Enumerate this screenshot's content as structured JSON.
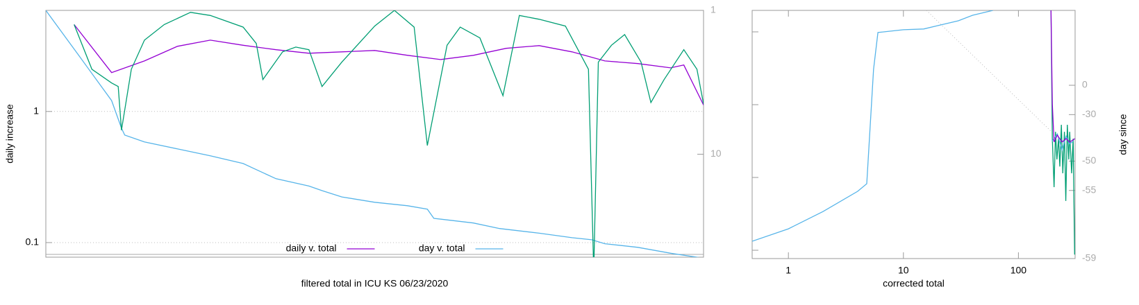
{
  "chart_data": [
    {
      "type": "line",
      "x_label": "filtered total in ICU KS 06/23/2020",
      "y_label": "daily increase",
      "xlim": [
        0,
        100
      ],
      "ylim": [
        0.0774,
        5.9
      ],
      "yscale": "log",
      "yticks": [
        0.1,
        1
      ],
      "y2lim": [
        52,
        1
      ],
      "y2scale": "log",
      "y2ticks": [
        1,
        10
      ],
      "grid": true,
      "legend": "bottom",
      "series": [
        {
          "name": "daily v. total",
          "color": "#9400d3",
          "x": [
            4.3,
            10,
            15,
            20,
            25,
            30,
            35,
            40,
            45,
            50,
            55,
            60,
            65,
            70,
            75,
            80,
            85,
            90,
            95,
            97,
            100
          ],
          "values": [
            4.6,
            1.98,
            2.43,
            3.14,
            3.5,
            3.2,
            2.96,
            2.78,
            2.85,
            2.92,
            2.68,
            2.49,
            2.68,
            3.03,
            3.18,
            2.85,
            2.43,
            2.32,
            2.15,
            2.26,
            1.12
          ]
        },
        {
          "name": "day v. total",
          "color": "#56b4e9",
          "x": [
            0,
            5,
            10,
            11.5,
            12,
            15,
            20,
            25,
            30,
            32,
            35,
            40,
            42,
            45,
            50,
            55,
            58,
            59,
            65,
            69,
            75,
            80,
            83,
            85,
            90,
            95,
            100
          ],
          "values": [
            5.9,
            2.68,
            1.21,
            0.746,
            0.66,
            0.585,
            0.518,
            0.459,
            0.401,
            0.36,
            0.307,
            0.27,
            0.249,
            0.223,
            0.203,
            0.191,
            0.18,
            0.153,
            0.141,
            0.128,
            0.118,
            0.109,
            0.105,
            0.098,
            0.092,
            0.083,
            0.076
          ]
        },
        {
          "color": "#009e73",
          "x": [
            4.3,
            7,
            10,
            11,
            11.5,
            13,
            15,
            18,
            22,
            25,
            30,
            32,
            33,
            36,
            38,
            40,
            42,
            45,
            50,
            53,
            56,
            58,
            61,
            63,
            66,
            69.5,
            72,
            75,
            79,
            82.5,
            83.3,
            84,
            86,
            88,
            90.5,
            92,
            94,
            97,
            99,
            100
          ],
          "values": [
            4.6,
            2.1,
            1.65,
            1.55,
            0.72,
            2.1,
            3.5,
            4.6,
            5.7,
            5.4,
            4.4,
            3.3,
            1.75,
            2.85,
            3.1,
            2.96,
            1.55,
            2.38,
            4.48,
            5.9,
            4.4,
            0.55,
            3.2,
            4.4,
            3.64,
            1.32,
            5.4,
            5.05,
            4.48,
            2.1,
            0.06,
            2.38,
            3.2,
            3.86,
            2.38,
            1.17,
            1.75,
            2.96,
            2.1,
            1.14
          ]
        }
      ]
    },
    {
      "type": "line",
      "x_label": "corrected total",
      "y2_label": "day since",
      "xlim": [
        0.484,
        311
      ],
      "xscale": "log",
      "xticks": [
        1,
        10,
        100
      ],
      "ylim": [
        0.769,
        1972
      ],
      "yscale": "log",
      "yticks": [
        1,
        10,
        100,
        1000
      ],
      "ytick_labels": false,
      "y2lim": [
        -59,
        292
      ],
      "y2scale": "log",
      "y2ticks": [
        0,
        -30,
        -50,
        -55,
        -59
      ],
      "series": [
        {
          "color": "#56b4e9",
          "x": [
            0.484,
            1,
            2,
            4,
            4.8,
            5.5,
            6,
            10,
            15,
            20,
            30,
            40,
            60
          ],
          "values": [
            1.33,
            1.97,
            3.4,
            6.45,
            8.2,
            306,
            980,
            1070,
            1095,
            1220,
            1420,
            1690,
            1972
          ]
        },
        {
          "color": "#009e73",
          "axis": "y2",
          "x": [
            192,
            197,
            204,
            210,
            216,
            223,
            229,
            236,
            243,
            251,
            258,
            266,
            274,
            279,
            290,
            299,
            308
          ],
          "values": [
            292,
            -43,
            -54.6,
            -40,
            -49.6,
            -43,
            -51.2,
            -36.4,
            -52.5,
            -40,
            -56.1,
            -36.4,
            -49.6,
            -40,
            -52.5,
            -43,
            -58.9
          ]
        },
        {
          "color": "#56b4e9",
          "axis": "y2",
          "x": [
            197,
            204,
            218,
            239,
            260,
            279,
            299
          ],
          "values": [
            -44,
            -43,
            -41,
            -47,
            -42,
            -45,
            -44
          ]
        },
        {
          "color": "#9400d3",
          "axis": "y2",
          "x": [
            192,
            197,
            204,
            218,
            239,
            260,
            279,
            310
          ],
          "values": [
            292,
            -21.5,
            -44.3,
            -41.5,
            -44.3,
            -43,
            -44.3,
            -43
          ]
        }
      ]
    }
  ]
}
